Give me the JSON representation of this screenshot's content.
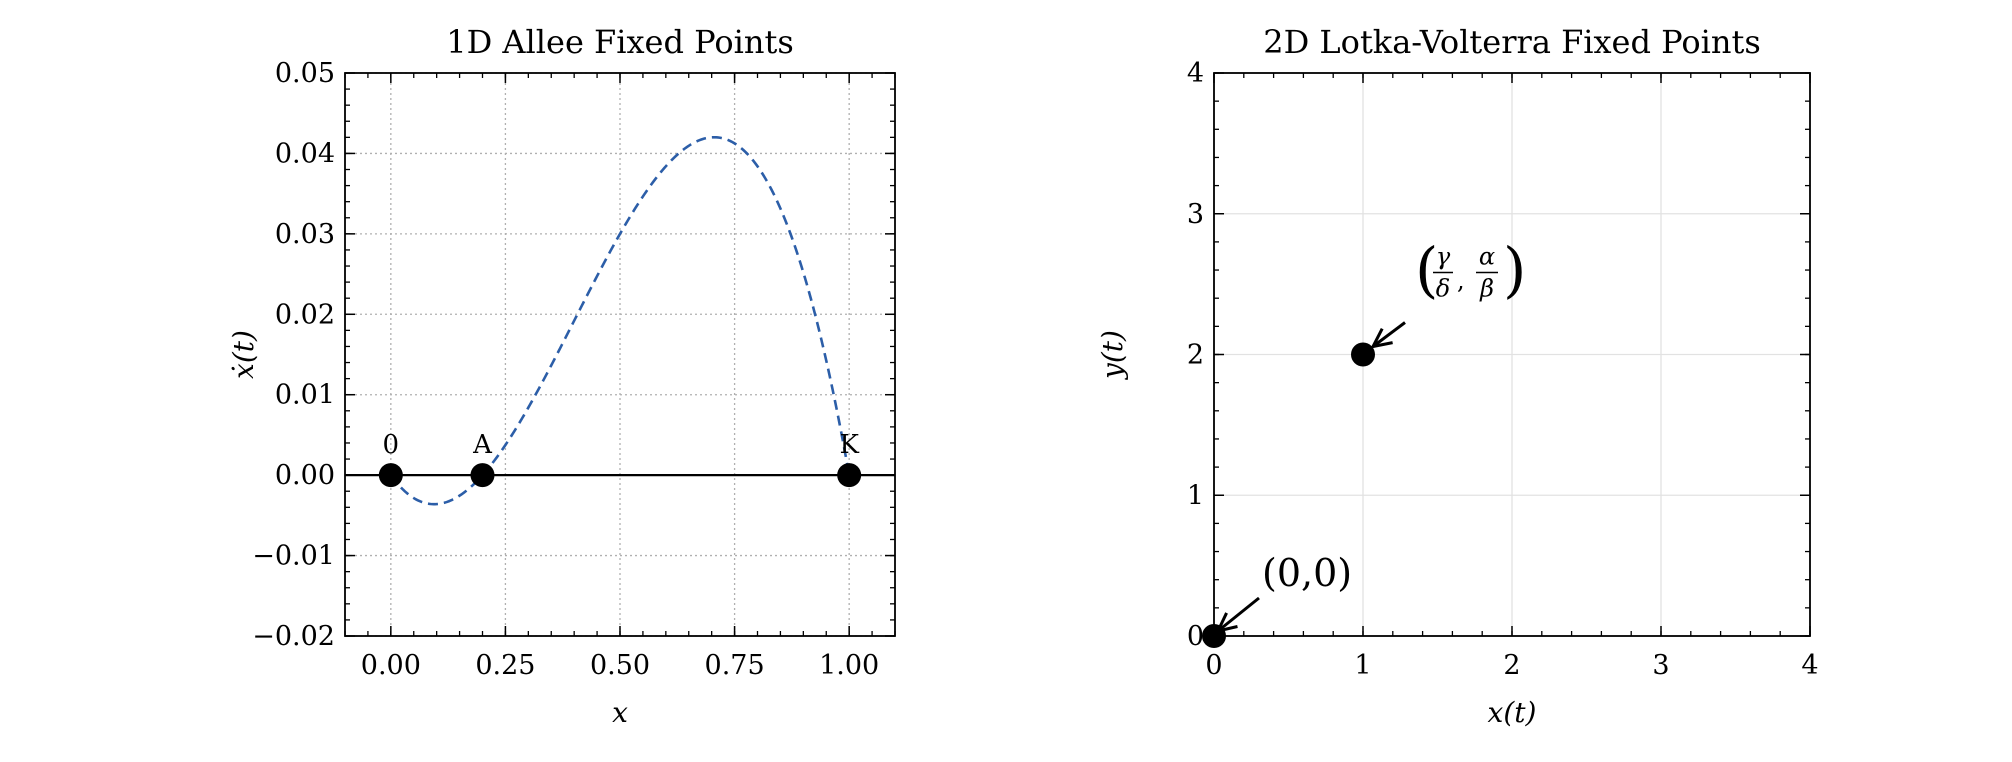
{
  "chart_data": [
    {
      "type": "line",
      "title": "1D Allee Fixed Points",
      "xlabel": "x",
      "ylabel": "ẋ(t)",
      "xlim": [
        -0.1,
        1.1
      ],
      "ylim": [
        -0.02,
        0.05
      ],
      "xticks": [
        0,
        0.25,
        0.5,
        0.75,
        1.0
      ],
      "xtick_labels": [
        "0.00",
        "0.25",
        "0.50",
        "0.75",
        "1.00"
      ],
      "yticks": [
        -0.02,
        -0.01,
        0,
        0.01,
        0.02,
        0.03,
        0.04,
        0.05
      ],
      "ytick_labels": [
        "−0.02",
        "−0.01",
        "0.00",
        "0.01",
        "0.02",
        "0.03",
        "0.04",
        "0.05"
      ],
      "grid": "dotted",
      "curve": {
        "formula": "r*x*(1-x)*(x-A)",
        "r": 0.4,
        "A": 0.2,
        "K": 1.0,
        "x_range": [
          0,
          1
        ],
        "color": "#2c5ea8",
        "style": "dashed"
      },
      "baseline": 0,
      "points": [
        {
          "x": 0,
          "y": 0,
          "label": "0"
        },
        {
          "x": 0.2,
          "y": 0,
          "label": "A"
        },
        {
          "x": 1.0,
          "y": 0,
          "label": "K"
        }
      ]
    },
    {
      "type": "scatter",
      "title": "2D Lotka-Volterra Fixed Points",
      "xlabel": "x(t)",
      "ylabel": "y(t)",
      "xlim": [
        0,
        4
      ],
      "ylim": [
        0,
        4
      ],
      "xticks": [
        0,
        1,
        2,
        3,
        4
      ],
      "xtick_labels": [
        "0",
        "1",
        "2",
        "3",
        "4"
      ],
      "yticks": [
        0,
        1,
        2,
        3,
        4
      ],
      "ytick_labels": [
        "0",
        "1",
        "2",
        "3",
        "4"
      ],
      "grid": "solid",
      "points": [
        {
          "x": 0,
          "y": 0,
          "annotation": "(0,0)"
        },
        {
          "x": 1,
          "y": 2,
          "annotation": "(γ/δ, α/β)",
          "num1": "γ",
          "den1": "δ",
          "num2": "α",
          "den2": "β"
        }
      ]
    }
  ]
}
